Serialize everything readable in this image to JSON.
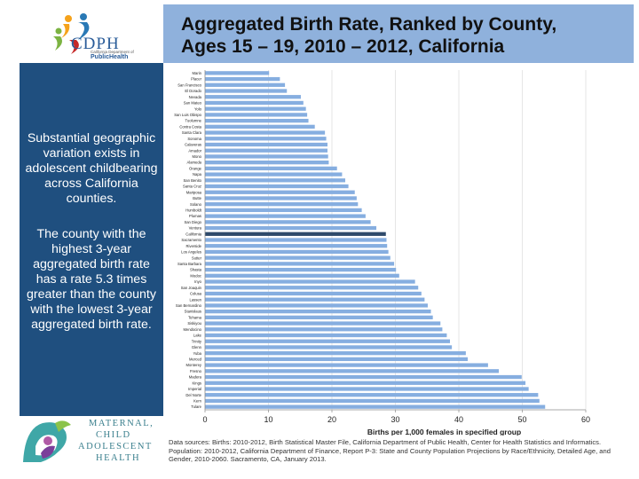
{
  "header": {
    "title_line1": "Aggregated Birth Rate, Ranked by County,",
    "title_line2": "Ages 15 – 19, 2010 – 2012, California"
  },
  "logo": {
    "text": "CDPH",
    "subtitle": "California Department of",
    "name": "PublicHealth"
  },
  "sidebar": {
    "paragraph1": "Substantial geographic variation exists in adolescent childbearing across California counties.",
    "paragraph2": "The county with the highest 3-year aggregated birth rate has a rate 5.3 times greater than the county with the lowest 3-year aggregated birth rate."
  },
  "mch_logo": {
    "line1": "MATERNAL,",
    "line2": "CHILD",
    "line3": "ADOLESCENT",
    "line4": "HEALTH"
  },
  "footer": {
    "source": "Data sources: Births: 2010-2012, Birth Statistical Master File, California Department of Public Health, Center for Health Statistics and Informatics. Population: 2010-2012, California Department of Finance, Report P-3: State and County Population Projections by Race/Ethnicity, Detailed Age, and Gender, 2010-2060. Sacramento, CA, January 2013."
  },
  "colors": {
    "bar": "#86aee0",
    "highlight_bar": "#2e4a6b",
    "title_bg": "#8fb1dc",
    "sidebar_bg": "#1f4f7f"
  },
  "chart_data": {
    "type": "bar",
    "orientation": "horizontal",
    "xlabel": "Births per 1,000 females in specified group",
    "xlim": [
      0,
      60
    ],
    "xticks": [
      0,
      10,
      20,
      30,
      40,
      50,
      60
    ],
    "highlight": "California",
    "categories": [
      "Marin",
      "Placer",
      "San Francisco",
      "El Dorado",
      "Nevada",
      "San Mateo",
      "Yolo",
      "San Luis Obispo",
      "Tuolumne",
      "Contra Costa",
      "Santa Clara",
      "Sonoma",
      "Calaveras",
      "Amador",
      "Mono",
      "Alameda",
      "Orange",
      "Napa",
      "San Benito",
      "Santa Cruz",
      "Mariposa",
      "Butte",
      "Solano",
      "Humboldt",
      "Plumas",
      "San Diego",
      "Ventura",
      "California",
      "Sacramento",
      "Riverside",
      "Los Angeles",
      "Sutter",
      "Santa Barbara",
      "Shasta",
      "Modoc",
      "Inyo",
      "San Joaquin",
      "Colusa",
      "Lassen",
      "San Bernardino",
      "Stanislaus",
      "Tehama",
      "Siskiyou",
      "Mendocino",
      "Lake",
      "Trinity",
      "Glenn",
      "Yuba",
      "Merced",
      "Monterey",
      "Fresno",
      "Madera",
      "Kings",
      "Imperial",
      "Del Norte",
      "Kern",
      "Tulare"
    ],
    "values": [
      10.1,
      11.8,
      12.6,
      12.9,
      15.1,
      15.5,
      15.9,
      16.1,
      16.3,
      17.3,
      18.9,
      19.1,
      19.3,
      19.3,
      19.4,
      19.5,
      20.8,
      21.6,
      22.1,
      22.6,
      23.6,
      23.9,
      24.1,
      24.7,
      25.3,
      26.1,
      27.0,
      28.5,
      28.6,
      28.7,
      28.9,
      29.2,
      29.8,
      30.1,
      30.6,
      33.1,
      33.6,
      34.1,
      34.6,
      35.1,
      35.6,
      35.9,
      37.1,
      37.4,
      38.1,
      38.6,
      38.9,
      41.1,
      41.4,
      44.6,
      46.3,
      49.9,
      50.5,
      51.0,
      52.5,
      52.7,
      53.6
    ]
  }
}
